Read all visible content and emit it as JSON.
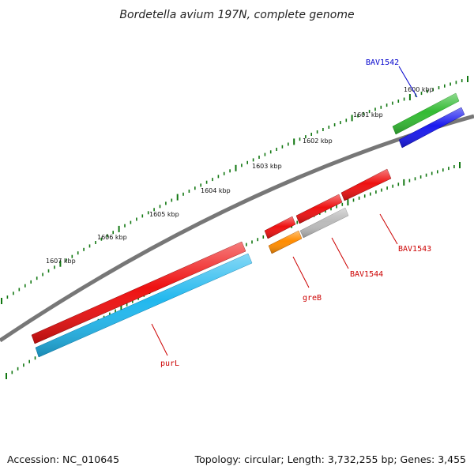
{
  "title": "Bordetella avium 197N, complete genome",
  "ruler_labels": [
    "1600 kbp",
    "1601 kbp",
    "1602 kbp",
    "1603 kbp",
    "1604 kbp",
    "1605 kbp",
    "1606 kbp",
    "1607 kbp"
  ],
  "genes": {
    "BAV1542": {
      "label": "BAV1542",
      "label_color": "#0000cc",
      "fill": "#1a1aee"
    },
    "green_feature": {
      "fill": "#33bb33"
    },
    "BAV1543": {
      "label": "BAV1543",
      "label_color": "#cc0000",
      "fill": "#ee1111"
    },
    "BAV1544": {
      "label": "BAV1544",
      "label_color": "#cc0000",
      "fill": "#bbbbbb"
    },
    "greB": {
      "label": "greB",
      "label_color": "#cc0000",
      "fill": "#ff8c00"
    },
    "purL": {
      "label": "purL",
      "label_color": "#cc0000",
      "fill": "#ee1111"
    },
    "purL_cds": {
      "fill": "#22b8ee"
    }
  },
  "colors": {
    "backbone": "#777777",
    "tick": "#117711"
  },
  "footer": {
    "accession": "Accession: NC_010645",
    "summary": "Topology: circular; Length: 3,732,255 bp; Genes: 3,455"
  }
}
